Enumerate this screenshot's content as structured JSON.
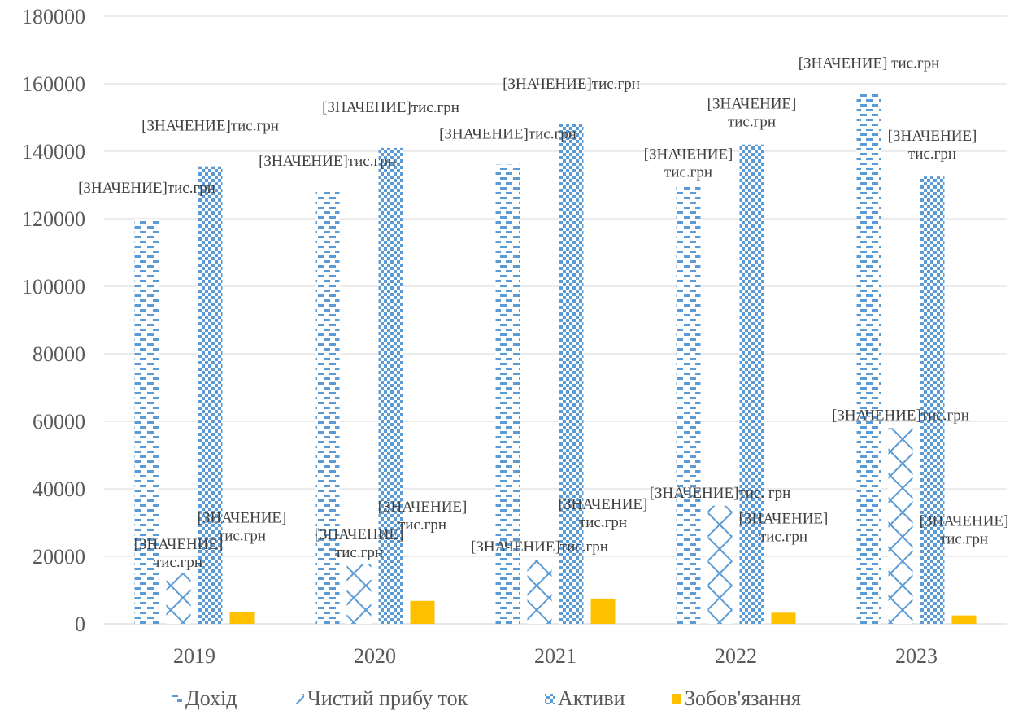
{
  "chart_data": {
    "type": "bar",
    "categories": [
      "2019",
      "2020",
      "2021",
      "2022",
      "2023"
    ],
    "series": [
      {
        "name": "Дохід",
        "values": [
          120000,
          128000,
          136000,
          130000,
          157000
        ],
        "color": "#5B9BD5",
        "pattern": "dashes"
      },
      {
        "name": "Чистий прибу ток",
        "values": [
          15000,
          17800,
          19000,
          35000,
          58000
        ],
        "color": "#5B9BD5",
        "pattern": "zigzag"
      },
      {
        "name": "Активи",
        "values": [
          135500,
          141000,
          148000,
          142000,
          132500
        ],
        "color": "#5B9BD5",
        "pattern": "checker"
      },
      {
        "name": "Зобов'язання",
        "values": [
          3500,
          6800,
          7500,
          3300,
          2500
        ],
        "color": "#FFC000",
        "pattern": "solid"
      }
    ],
    "ylim": [
      0,
      180000
    ],
    "yticks": [
      "0",
      "20000",
      "40000",
      "60000",
      "80000",
      "100000",
      "120000",
      "140000",
      "160000",
      "180000"
    ],
    "grid": true,
    "legend_position": "bottom",
    "data_labels": [
      {
        "series": "Дохід",
        "year": "2019",
        "lines": [
          "[ЗНАЧЕНИЕ]тис.грн"
        ]
      },
      {
        "series": "Дохід",
        "year": "2020",
        "lines": [
          "[ЗНАЧЕНИЕ]тис.грн"
        ]
      },
      {
        "series": "Дохід",
        "year": "2021",
        "lines": [
          "[ЗНАЧЕНИЕ]тис.грн"
        ]
      },
      {
        "series": "Дохід",
        "year": "2022",
        "lines": [
          "[ЗНАЧЕНИЕ]",
          "тис.грн"
        ]
      },
      {
        "series": "Дохід",
        "year": "2023",
        "lines": [
          "[ЗНАЧЕНИЕ] тис.грн"
        ]
      },
      {
        "series": "Чистий прибу ток",
        "year": "2019",
        "lines": [
          "[ЗНАЧЕНИЕ]",
          "тис.грн"
        ]
      },
      {
        "series": "Чистий прибу ток",
        "year": "2020",
        "lines": [
          "[ЗНАЧЕНИЕ]",
          "тис.грн"
        ]
      },
      {
        "series": "Чистий прибу ток",
        "year": "2021",
        "lines": [
          "[ЗНАЧЕНИЕ]тис.грн"
        ]
      },
      {
        "series": "Чистий прибу ток",
        "year": "2022",
        "lines": [
          "[ЗНАЧЕНИЕ]тис. грн"
        ]
      },
      {
        "series": "Чистий прибу ток",
        "year": "2023",
        "lines": [
          "[ЗНАЧЕНИЕ]тис.грн"
        ]
      },
      {
        "series": "Активи",
        "year": "2019",
        "lines": [
          "[ЗНАЧЕНИЕ]тис.грн"
        ]
      },
      {
        "series": "Активи",
        "year": "2020",
        "lines": [
          "[ЗНАЧЕНИЕ]тис.грн"
        ]
      },
      {
        "series": "Активи",
        "year": "2021",
        "lines": [
          "[ЗНАЧЕНИЕ]тис.грн"
        ]
      },
      {
        "series": "Активи",
        "year": "2022",
        "lines": [
          "[ЗНАЧЕНИЕ]",
          "тис.грн"
        ]
      },
      {
        "series": "Активи",
        "year": "2023",
        "lines": [
          "[ЗНАЧЕНИЕ]",
          "тис.грн"
        ]
      },
      {
        "series": "Зобов'язання",
        "year": "2019",
        "lines": [
          "[ЗНАЧЕНИЕ]",
          "тис.грн"
        ]
      },
      {
        "series": "Зобов'язання",
        "year": "2020",
        "lines": [
          "[ЗНАЧЕНИЕ]",
          "тис.грн"
        ]
      },
      {
        "series": "Зобов'язання",
        "year": "2021",
        "lines": [
          "[ЗНАЧЕНИЕ]",
          "тис.грн"
        ]
      },
      {
        "series": "Зобов'язання",
        "year": "2022",
        "lines": [
          "[ЗНАЧЕНИЕ]",
          "тис.грн"
        ]
      },
      {
        "series": "Зобов'язання",
        "year": "2023",
        "lines": [
          "[ЗНАЧЕНИЕ]",
          "тис.грн"
        ]
      }
    ]
  }
}
